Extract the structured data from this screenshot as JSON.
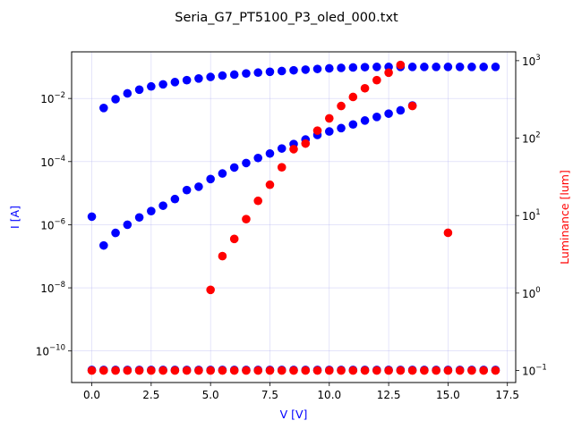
{
  "chart_data": {
    "type": "scatter",
    "title": "Seria_G7_PT5100_P3_oled_000.txt",
    "xlabel": "V [V]",
    "ylabel_left": "I [A]",
    "ylabel_right": "Luminance [lum]",
    "xlim": [
      -0.85,
      17.85
    ],
    "ylim_left": [
      1e-11,
      0.3
    ],
    "ylim_right": [
      0.07,
      1300
    ],
    "yscale_left": "log",
    "yscale_right": "log",
    "grid": true,
    "x_ticks": [
      0,
      2.5,
      5,
      7.5,
      10,
      12.5,
      15,
      17.5
    ],
    "x_tick_labels": [
      "0.0",
      "2.5",
      "5.0",
      "7.5",
      "10.0",
      "12.5",
      "15.0",
      "17.5"
    ],
    "y_left_ticks": [
      {
        "value": 1e-10,
        "base": "10",
        "exp": "−10"
      },
      {
        "value": 1e-08,
        "base": "10",
        "exp": "−8"
      },
      {
        "value": 1e-06,
        "base": "10",
        "exp": "−6"
      },
      {
        "value": 0.0001,
        "base": "10",
        "exp": "−4"
      },
      {
        "value": 0.01,
        "base": "10",
        "exp": "−2"
      }
    ],
    "y_right_ticks": [
      {
        "value": 0.1,
        "base": "10",
        "exp": "−1"
      },
      {
        "value": 1,
        "base": "10",
        "exp": "0"
      },
      {
        "value": 10,
        "base": "10",
        "exp": "1"
      },
      {
        "value": 100,
        "base": "10",
        "exp": "2"
      },
      {
        "value": 1000,
        "base": "10",
        "exp": "3"
      }
    ],
    "colors": {
      "current": "#0000ff",
      "luminance": "#ff0000",
      "grid": "#b0b0f0",
      "axis": "#000000"
    },
    "series": [
      {
        "axis": "left",
        "color": "#0000ff",
        "points": [
          [
            0,
            1.8e-06
          ],
          [
            0.5,
            2.2e-07
          ],
          [
            1,
            5.5e-07
          ],
          [
            1.5,
            1e-06
          ],
          [
            2,
            1.7e-06
          ],
          [
            2.5,
            2.7e-06
          ],
          [
            3,
            4e-06
          ],
          [
            3.5,
            6.5e-06
          ],
          [
            4,
            1.25e-05
          ],
          [
            4.5,
            1.6e-05
          ],
          [
            5,
            2.8e-05
          ],
          [
            5.5,
            4.2e-05
          ],
          [
            6,
            6.5e-05
          ],
          [
            6.5,
            9e-05
          ],
          [
            7,
            0.00013
          ],
          [
            7.5,
            0.00018
          ],
          [
            8,
            0.00026
          ],
          [
            8.5,
            0.00036
          ],
          [
            9,
            0.0005
          ],
          [
            9.5,
            0.0007
          ],
          [
            10,
            0.0009
          ],
          [
            10.5,
            0.00115
          ],
          [
            11,
            0.0015
          ],
          [
            11.5,
            0.002
          ],
          [
            12,
            0.0026
          ],
          [
            12.5,
            0.0033
          ],
          [
            13,
            0.0042
          ],
          [
            13.5,
            0.006
          ],
          [
            0.5,
            0.005
          ],
          [
            1,
            0.0095
          ],
          [
            1.5,
            0.0145
          ],
          [
            2,
            0.019
          ],
          [
            2.5,
            0.024
          ],
          [
            3,
            0.028
          ],
          [
            3.5,
            0.033
          ],
          [
            4,
            0.038
          ],
          [
            4.5,
            0.043
          ],
          [
            5,
            0.048
          ],
          [
            5.5,
            0.053
          ],
          [
            6,
            0.057
          ],
          [
            6.5,
            0.062
          ],
          [
            7,
            0.066
          ],
          [
            7.5,
            0.07
          ],
          [
            8,
            0.074
          ],
          [
            8.5,
            0.078
          ],
          [
            9,
            0.082
          ],
          [
            9.5,
            0.086
          ],
          [
            10,
            0.09
          ],
          [
            10.5,
            0.093
          ],
          [
            11,
            0.096
          ],
          [
            11.5,
            0.098
          ],
          [
            12,
            0.1
          ],
          [
            12.5,
            0.1
          ],
          [
            13,
            0.1
          ],
          [
            13.5,
            0.1
          ],
          [
            14,
            0.1
          ],
          [
            14.5,
            0.1
          ],
          [
            15,
            0.1
          ],
          [
            15.5,
            0.1
          ],
          [
            16,
            0.1
          ],
          [
            16.5,
            0.1
          ],
          [
            17,
            0.1
          ],
          [
            0,
            2.5e-11
          ],
          [
            0.5,
            2.5e-11
          ],
          [
            1,
            2.5e-11
          ],
          [
            1.5,
            2.5e-11
          ],
          [
            2,
            2.5e-11
          ],
          [
            2.5,
            2.5e-11
          ],
          [
            3,
            2.5e-11
          ],
          [
            3.5,
            2.5e-11
          ],
          [
            4,
            2.5e-11
          ],
          [
            4.5,
            2.5e-11
          ],
          [
            5,
            2.5e-11
          ],
          [
            5.5,
            2.5e-11
          ],
          [
            6,
            2.5e-11
          ],
          [
            6.5,
            2.5e-11
          ],
          [
            7,
            2.5e-11
          ],
          [
            7.5,
            2.5e-11
          ],
          [
            8,
            2.5e-11
          ],
          [
            8.5,
            2.5e-11
          ],
          [
            9,
            2.5e-11
          ],
          [
            9.5,
            2.5e-11
          ],
          [
            10,
            2.5e-11
          ],
          [
            10.5,
            2.5e-11
          ],
          [
            11,
            2.5e-11
          ],
          [
            11.5,
            2.5e-11
          ],
          [
            12,
            2.5e-11
          ],
          [
            12.5,
            2.5e-11
          ],
          [
            13,
            2.5e-11
          ],
          [
            13.5,
            2.5e-11
          ],
          [
            14,
            2.5e-11
          ],
          [
            14.5,
            2.5e-11
          ],
          [
            15,
            2.5e-11
          ],
          [
            15.5,
            2.5e-11
          ],
          [
            16,
            2.5e-11
          ],
          [
            16.5,
            2.5e-11
          ],
          [
            17,
            2.5e-11
          ]
        ]
      },
      {
        "axis": "right",
        "color": "#ff0000",
        "points": [
          [
            0,
            0.1
          ],
          [
            0.5,
            0.1
          ],
          [
            1,
            0.1
          ],
          [
            1.5,
            0.1
          ],
          [
            2,
            0.1
          ],
          [
            2.5,
            0.1
          ],
          [
            3,
            0.1
          ],
          [
            3.5,
            0.1
          ],
          [
            4,
            0.1
          ],
          [
            4.5,
            0.1
          ],
          [
            5,
            0.1
          ],
          [
            5.5,
            0.1
          ],
          [
            6,
            0.1
          ],
          [
            6.5,
            0.1
          ],
          [
            7,
            0.1
          ],
          [
            7.5,
            0.1
          ],
          [
            8,
            0.1
          ],
          [
            8.5,
            0.1
          ],
          [
            9,
            0.1
          ],
          [
            9.5,
            0.1
          ],
          [
            10,
            0.1
          ],
          [
            10.5,
            0.1
          ],
          [
            11,
            0.1
          ],
          [
            11.5,
            0.1
          ],
          [
            12,
            0.1
          ],
          [
            12.5,
            0.1
          ],
          [
            13,
            0.1
          ],
          [
            13.5,
            0.1
          ],
          [
            14,
            0.1
          ],
          [
            14.5,
            0.1
          ],
          [
            15,
            0.1
          ],
          [
            15.5,
            0.1
          ],
          [
            16,
            0.1
          ],
          [
            16.5,
            0.1
          ],
          [
            17,
            0.1
          ],
          [
            5,
            1.1
          ],
          [
            5.5,
            3
          ],
          [
            6,
            5
          ],
          [
            6.5,
            9
          ],
          [
            7,
            15.5
          ],
          [
            7.5,
            25
          ],
          [
            8,
            42
          ],
          [
            8.5,
            72
          ],
          [
            9,
            85
          ],
          [
            9.5,
            125
          ],
          [
            10,
            180
          ],
          [
            10.5,
            260
          ],
          [
            11,
            340
          ],
          [
            11.5,
            440
          ],
          [
            12,
            560
          ],
          [
            12.5,
            700
          ],
          [
            13,
            880
          ],
          [
            13.5,
            260
          ],
          [
            15,
            6
          ]
        ]
      }
    ]
  }
}
